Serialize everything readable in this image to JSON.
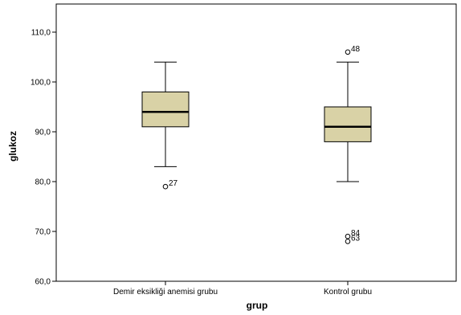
{
  "chart_data": {
    "type": "boxplot",
    "xlabel": "grup",
    "ylabel": "glukoz",
    "ylim": [
      60,
      115
    ],
    "yticks": [
      60,
      70,
      80,
      90,
      100,
      110
    ],
    "ytick_labels": [
      "60,0",
      "70,0",
      "80,0",
      "90,0",
      "100,0",
      "110,0"
    ],
    "grid": false,
    "box_color": "#d9d2a6",
    "categories": [
      "Demir eksikliği anemisi grubu",
      "Kontrol grubu"
    ],
    "boxes": [
      {
        "category": "Demir eksikliği anemisi grubu",
        "whisker_low": 83,
        "q1": 91,
        "median": 94,
        "q3": 98,
        "whisker_high": 104,
        "outliers": [
          {
            "value": 79,
            "label": "27"
          }
        ]
      },
      {
        "category": "Kontrol grubu",
        "whisker_low": 80,
        "q1": 88,
        "median": 91,
        "q3": 95,
        "whisker_high": 104,
        "outliers": [
          {
            "value": 106,
            "label": "48"
          },
          {
            "value": 69,
            "label": "84"
          },
          {
            "value": 68,
            "label": "63"
          }
        ]
      }
    ]
  }
}
